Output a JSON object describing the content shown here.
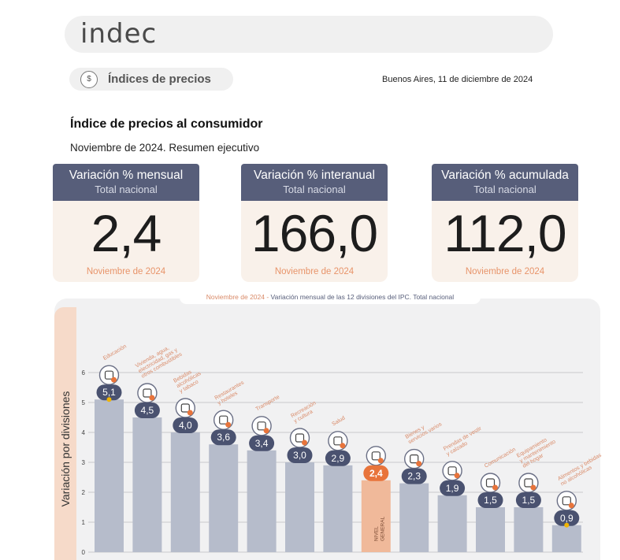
{
  "header": {
    "logo": "indec",
    "section_icon": "$",
    "section_label": "Índices de precios",
    "dateline": "Buenos Aires, 11 de diciembre de 2024"
  },
  "report": {
    "title": "Índice de precios al consumidor",
    "subtitle": "Noviembre de 2024. Resumen ejecutivo"
  },
  "cards": [
    {
      "title": "Variación % mensual",
      "scope": "Total nacional",
      "value": "2,4",
      "date": "Noviembre de 2024"
    },
    {
      "title": "Variación % interanual",
      "scope": "Total nacional",
      "value": "166,0",
      "date": "Noviembre de 2024"
    },
    {
      "title": "Variación % acumulada",
      "scope": "Total nacional",
      "value": "112,0",
      "date": "Noviembre de 2024"
    }
  ],
  "colors": {
    "bar": "#b6bccb",
    "bar_highlight": "#f0b99a",
    "bubble": "#4a5270",
    "bubble_highlight": "#e8743b",
    "label_accent": "#d98a68",
    "card_header": "#575e7a"
  },
  "chart_data": {
    "type": "bar",
    "title_prefix": "Noviembre de 2024",
    "title_separator": " - ",
    "title": "Variación mensual de las 12 divisiones del IPC. Total nacional",
    "ylabel": "Variación por divisiones",
    "ylim": [
      0,
      6
    ],
    "yticks": [
      0,
      1,
      2,
      3,
      4,
      5,
      6
    ],
    "grid": true,
    "categories": [
      [
        "Educación"
      ],
      [
        "Vivienda, agua,",
        "electricidad, gas y",
        "otros combustibles"
      ],
      [
        "Bebidas",
        "alcohólicas",
        "y tabaco"
      ],
      [
        "Restaurantes",
        "y hoteles"
      ],
      [
        "Transporte"
      ],
      [
        "Recreación",
        "y cultura"
      ],
      [
        "Salud"
      ],
      [
        "NIVEL",
        "GENERAL"
      ],
      [
        "Bienes y",
        "servicios varios"
      ],
      [
        "Prendas de vestir",
        "y calzado"
      ],
      [
        "Comunicación"
      ],
      [
        "Equipamiento",
        "y mantenimiento",
        "del hogar"
      ],
      [
        "Alimentos y bebidas",
        "no alcohólicas"
      ]
    ],
    "values": [
      5.1,
      4.5,
      4.0,
      3.6,
      3.4,
      3.0,
      2.9,
      2.4,
      2.3,
      1.9,
      1.5,
      1.5,
      0.9
    ],
    "value_labels": [
      "5,1",
      "4,5",
      "4,0",
      "3,6",
      "3,4",
      "3,0",
      "2,9",
      "2,4",
      "2,3",
      "1,9",
      "1,5",
      "1,5",
      "0,9"
    ],
    "highlight_index": 7,
    "icons": [
      "book-icon",
      "lightbulb-icon",
      "bottle-icon",
      "cutlery-icon",
      "bus-icon",
      "leisure-icon",
      "first-aid-icon",
      "basket-icon",
      "scissors-icon",
      "shirt-icon",
      "phone-icon",
      "appliance-icon",
      "food-icon"
    ]
  }
}
